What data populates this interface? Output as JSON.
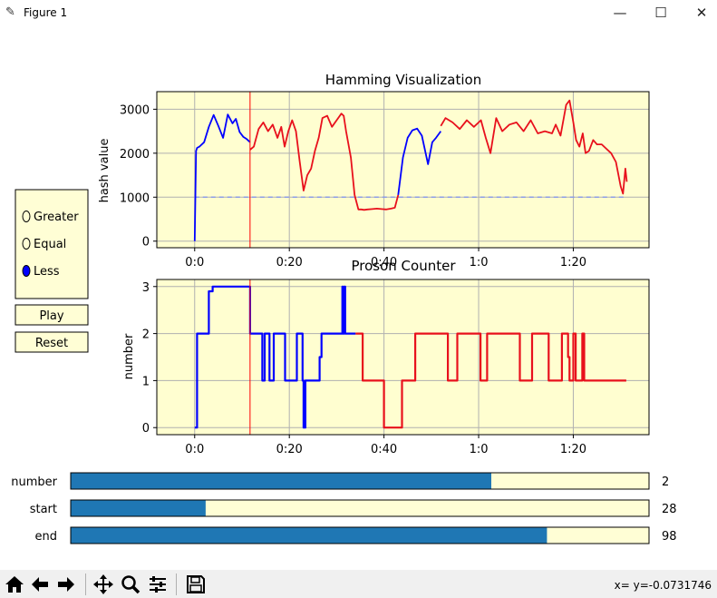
{
  "window": {
    "title": "Figure 1"
  },
  "window_controls": {
    "minimize": "—",
    "maximize": "☐",
    "close": "✕"
  },
  "radio": {
    "options": [
      "Greater",
      "Equal",
      "Less"
    ],
    "selected": "Less"
  },
  "buttons": {
    "play": "Play",
    "reset": "Reset"
  },
  "sliders": [
    {
      "label": "number",
      "value": 2,
      "min": 0,
      "max": 2.75,
      "display": "2"
    },
    {
      "label": "start",
      "value": 28,
      "min": 0,
      "max": 120,
      "display": "28"
    },
    {
      "label": "end",
      "value": 98,
      "min": 0,
      "max": 119,
      "display": "98"
    }
  ],
  "colors": {
    "axes_bg": "#fffed0",
    "widget_bg": "#fffed5",
    "slider_fill": "#1f77b4",
    "blue": "#0000ff",
    "red": "#e8101c",
    "threshold": "#8c9ce8",
    "cursor": "#ff0000"
  },
  "status": {
    "coords": "x= y=-0.0731746"
  },
  "toolbar_icons": [
    "home-icon",
    "back-arrow-icon",
    "forward-arrow-icon",
    "pan-icon",
    "zoom-icon",
    "configure-icon",
    "save-icon"
  ],
  "chart_data": [
    {
      "type": "line",
      "title": "Hamming Visualization",
      "xlabel": "",
      "ylabel": "hash value",
      "xlim": [
        -8,
        96
      ],
      "ylim": [
        -150,
        3400
      ],
      "xticks": [
        0,
        20,
        40,
        60,
        80
      ],
      "xtick_labels": [
        "0:0",
        "0:20",
        "0:40",
        "1:0",
        "1:20"
      ],
      "yticks": [
        0,
        1000,
        2000,
        3000
      ],
      "ytick_labels": [
        "0",
        "1000",
        "2000",
        "3000"
      ],
      "grid": true,
      "vline": 11.7,
      "threshold": {
        "y": 1000,
        "x": [
          0,
          91.2
        ]
      },
      "series": [
        {
          "color": "blue",
          "x": [
            0,
            0.3,
            0.5,
            1,
            2,
            3,
            4,
            5,
            6,
            7,
            8,
            8.7,
            9.5,
            10.3,
            11,
            11.7
          ],
          "y": [
            0,
            2050,
            2120,
            2150,
            2250,
            2600,
            2870,
            2620,
            2350,
            2880,
            2680,
            2780,
            2480,
            2370,
            2320,
            2250
          ]
        },
        {
          "color": "red",
          "x": [
            11.7,
            12.5,
            13.5,
            14.5,
            15.5,
            16.5,
            17.5,
            18.3,
            19,
            19.8,
            20.6,
            21.4,
            22.2,
            23,
            23.8,
            24.6,
            25.4,
            26.2,
            27,
            28,
            29,
            30,
            31,
            31.5,
            32,
            33,
            33.8,
            34.6,
            35.2,
            35.8,
            36.5,
            37.5,
            38.5,
            39.5,
            40.5,
            41.5,
            42.3,
            43
          ],
          "y": [
            2080,
            2150,
            2550,
            2700,
            2500,
            2650,
            2350,
            2600,
            2150,
            2500,
            2750,
            2500,
            1800,
            1150,
            1500,
            1650,
            2050,
            2350,
            2800,
            2850,
            2600,
            2750,
            2900,
            2850,
            2500,
            1900,
            1050,
            720,
            720,
            710,
            720,
            730,
            740,
            730,
            720,
            740,
            760,
            1050
          ]
        },
        {
          "color": "blue",
          "x": [
            43,
            44,
            45,
            46,
            47,
            48,
            49.3,
            50.2,
            51,
            52
          ],
          "y": [
            1050,
            1900,
            2350,
            2520,
            2560,
            2400,
            1750,
            2250,
            2350,
            2500
          ]
        },
        {
          "color": "red",
          "x": [
            52,
            53,
            54.5,
            56,
            57.5,
            59,
            60.5,
            61.5,
            62.5,
            63.7,
            65,
            66.5,
            68,
            69.5,
            71,
            72.5,
            74,
            75.5,
            76.3,
            77.3,
            78.5,
            79.2,
            80,
            80.6,
            81.3,
            82,
            82.6,
            83.3,
            84.2,
            85,
            86,
            87,
            88,
            89,
            90,
            90.5,
            91,
            91.3
          ],
          "y": [
            2620,
            2800,
            2700,
            2550,
            2750,
            2600,
            2750,
            2350,
            2000,
            2800,
            2500,
            2650,
            2700,
            2500,
            2750,
            2450,
            2500,
            2450,
            2650,
            2400,
            3100,
            3200,
            2700,
            2300,
            2150,
            2450,
            2000,
            2050,
            2300,
            2200,
            2200,
            2100,
            2000,
            1800,
            1250,
            1080,
            1650,
            1350
          ]
        }
      ]
    },
    {
      "type": "line",
      "title": "Proson Counter",
      "xlabel": "",
      "ylabel": "number",
      "xlim": [
        -8,
        96
      ],
      "ylim": [
        -0.15,
        3.15
      ],
      "xticks": [
        0,
        20,
        40,
        60,
        80
      ],
      "xtick_labels": [
        "0:0",
        "0:20",
        "0:40",
        "1:0",
        "1:20"
      ],
      "yticks": [
        0,
        1,
        2,
        3
      ],
      "ytick_labels": [
        "0",
        "1",
        "2",
        "3"
      ],
      "grid": true,
      "vline": 11.7,
      "series": [
        {
          "color": "blue",
          "x": [
            0,
            0.5,
            0.5,
            3,
            3,
            3.8,
            3.8,
            11.7,
            11.7,
            14.3,
            14.3,
            14.8,
            14.8,
            15.8,
            15.8,
            16.7,
            16.7,
            19.1,
            19.1,
            21.6,
            21.6,
            22.8,
            22.8,
            23,
            23,
            23.4,
            23.4,
            23.9,
            23.9,
            26.4,
            26.4,
            26.8,
            26.8,
            28.2,
            28.2,
            31.2,
            31.2,
            31.3,
            31.3,
            31.6,
            31.6,
            31.8,
            31.8,
            34
          ],
          "y": [
            0,
            0,
            2,
            2,
            2.9,
            2.9,
            3,
            3,
            2,
            2,
            1,
            1,
            2,
            2,
            1,
            1,
            2,
            2,
            1,
            1,
            2,
            2,
            1,
            1,
            0,
            0,
            1,
            1,
            1,
            1,
            1.5,
            1.5,
            2,
            2,
            2,
            2,
            3,
            3,
            2,
            2,
            3,
            3,
            2,
            2
          ]
        },
        {
          "color": "red",
          "x": [
            34,
            35.5,
            35.5,
            40,
            40,
            43.8,
            43.8,
            46.6,
            46.6,
            53.5,
            53.5,
            55.5,
            55.5,
            60.4,
            60.4,
            61.8,
            61.8,
            68.7,
            68.7,
            71.3,
            71.3,
            74.8,
            74.8,
            77.6,
            77.6,
            78.9,
            78.9,
            79.2,
            79.2,
            80,
            80,
            80.5,
            80.5,
            81.9,
            81.9,
            82.3,
            82.3,
            91.2
          ],
          "y": [
            2,
            2,
            1,
            1,
            0,
            0,
            1,
            1,
            2,
            2,
            1,
            1,
            2,
            2,
            1,
            1,
            2,
            2,
            1,
            1,
            2,
            2,
            1,
            1,
            2,
            2,
            1.5,
            1.5,
            1,
            1,
            2,
            2,
            1,
            1,
            2,
            2,
            1,
            1
          ]
        }
      ]
    }
  ]
}
